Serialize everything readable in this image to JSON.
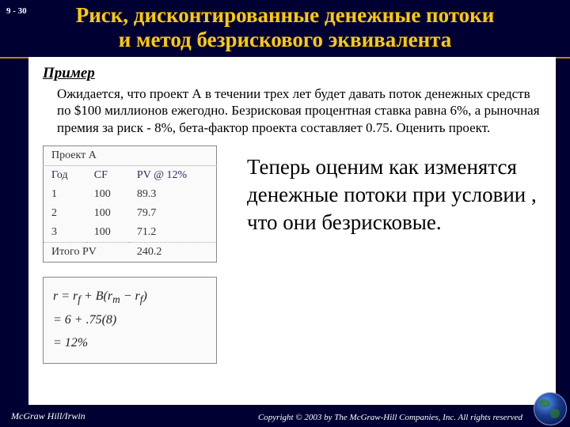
{
  "slide_number": "9 - 30",
  "title_line1": "Риск, дисконтированные денежные потоки",
  "title_line2": "и метод безрискового эквивалента",
  "example_label": "Пример",
  "example_text": "Ожидается, что проект А в течении трех лет будет давать поток денежных средств по $100 миллионов ежегодно. Безрисковая процентная ставка равна 6%, а рыночная премия за риск - 8%, бета-фактор проекта составляет 0.75. Оценить проект.",
  "table": {
    "header": "Проект А",
    "columns": [
      "Год",
      "CF",
      "PV @ 12%"
    ],
    "rows": [
      [
        "1",
        "100",
        "89.3"
      ],
      [
        "2",
        "100",
        "79.7"
      ],
      [
        "3",
        "100",
        "71.2"
      ]
    ],
    "total_label": "Итого PV",
    "total_value": "240.2"
  },
  "formula": {
    "line1": "r = r_f + B(r_m − r_f)",
    "line2": "= 6 + .75(8)",
    "line3": "= 12%"
  },
  "right_text": "Теперь оценим как изменятся денежные потоки при условии , что они безрисковые.",
  "footer_left": "McGraw Hill/Irwin",
  "footer_right": "Copyright © 2003 by The McGraw-Hill Companies, Inc. All rights reserved",
  "colors": {
    "background": "#000033",
    "title_color": "#ffcc00",
    "accent_line": "#b8860b",
    "content_bg": "#ffffff",
    "text": "#000000"
  }
}
